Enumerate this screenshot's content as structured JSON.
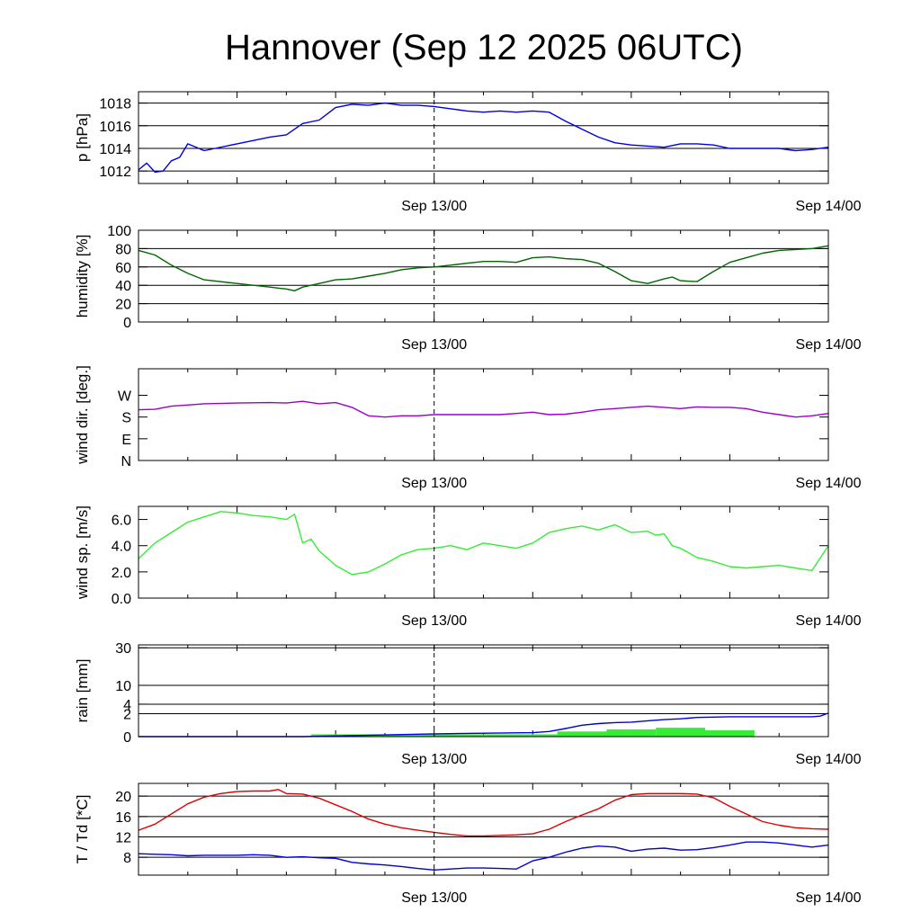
{
  "title": "Hannover (Sep 12 2025 06UTC)",
  "time_axis": {
    "start_hours": 0,
    "end_hours": 42,
    "labels": [
      {
        "h": 18,
        "text": "Sep 13/00"
      },
      {
        "h": 42,
        "text": "Sep 14/00"
      }
    ]
  },
  "chart_data": [
    {
      "type": "line",
      "ylabel": "p [hPa]",
      "ylim": [
        1010.9,
        1019.0
      ],
      "grid_y": [
        1012,
        1014,
        1016,
        1018
      ],
      "yticks": [
        {
          "v": 1012,
          "label": "1012"
        },
        {
          "v": 1014,
          "label": "1014"
        },
        {
          "v": 1016,
          "label": "1016"
        },
        {
          "v": 1018,
          "label": "1018"
        }
      ],
      "series": [
        {
          "color": "#0000dd",
          "x": [
            0,
            0.5,
            1,
            1.5,
            2,
            2.5,
            3,
            4,
            6,
            8,
            9,
            10,
            11,
            12,
            13,
            14,
            15,
            16,
            17,
            18,
            19,
            20,
            21,
            22,
            23,
            24,
            25,
            26,
            27,
            28,
            29,
            30,
            31,
            32,
            33,
            34,
            35,
            36,
            37,
            38,
            39,
            40,
            41,
            42
          ],
          "y": [
            1012.1,
            1012.7,
            1011.9,
            1012.0,
            1012.9,
            1013.2,
            1014.4,
            1013.8,
            1014.4,
            1015.0,
            1015.2,
            1016.2,
            1016.5,
            1017.6,
            1017.9,
            1017.8,
            1018.0,
            1017.8,
            1017.8,
            1017.7,
            1017.5,
            1017.3,
            1017.2,
            1017.3,
            1017.2,
            1017.3,
            1017.2,
            1016.4,
            1015.7,
            1015.0,
            1014.5,
            1014.3,
            1014.2,
            1014.1,
            1014.4,
            1014.4,
            1014.3,
            1014.0,
            1014.0,
            1014.0,
            1014.0,
            1013.8,
            1013.9,
            1014.1
          ]
        }
      ]
    },
    {
      "type": "line",
      "ylabel": "humidity [%]",
      "ylim": [
        0,
        100
      ],
      "grid_y": [
        20,
        40,
        60,
        80
      ],
      "yticks": [
        {
          "v": 0,
          "label": "0"
        },
        {
          "v": 20,
          "label": "20"
        },
        {
          "v": 40,
          "label": "40"
        },
        {
          "v": 60,
          "label": "60"
        },
        {
          "v": 80,
          "label": "80"
        },
        {
          "v": 100,
          "label": "100"
        }
      ],
      "series": [
        {
          "color": "#006600",
          "x": [
            0,
            1,
            2,
            3,
            4,
            6,
            8,
            8.5,
            9,
            9.5,
            10,
            11,
            12,
            13,
            14,
            15,
            16,
            17,
            18,
            19,
            20,
            21,
            22,
            23,
            24,
            25,
            26,
            27,
            28,
            29,
            30,
            31,
            32,
            32.5,
            33,
            34,
            35,
            36,
            37,
            38,
            39,
            40,
            41,
            42
          ],
          "y": [
            78,
            73,
            62,
            53,
            46,
            42,
            38,
            37,
            36,
            34,
            38,
            42,
            46,
            47,
            50,
            53,
            57,
            59,
            60,
            62,
            64,
            66,
            66,
            65,
            70,
            71,
            69,
            68,
            64,
            55,
            45,
            42,
            47,
            49,
            45,
            44,
            55,
            65,
            70,
            75,
            78,
            79,
            80,
            83
          ]
        }
      ]
    },
    {
      "type": "line",
      "ylabel": "wind dir. [deg.]",
      "ylim": [
        0,
        380
      ],
      "grid_y": [],
      "yticks": [
        {
          "v": 0,
          "label": "N"
        },
        {
          "v": 90,
          "label": "E"
        },
        {
          "v": 180,
          "label": "S"
        },
        {
          "v": 270,
          "label": "W"
        }
      ],
      "series": [
        {
          "color": "#9900cc",
          "x": [
            0,
            1,
            2,
            3,
            4,
            6,
            8,
            9,
            10,
            11,
            12,
            13,
            14,
            15,
            16,
            17,
            18,
            19,
            20,
            21,
            22,
            23,
            24,
            25,
            26,
            27,
            28,
            29,
            30,
            31,
            32,
            33,
            34,
            35,
            36,
            37,
            38,
            39,
            40,
            41,
            42
          ],
          "y": [
            210,
            212,
            225,
            230,
            235,
            238,
            240,
            238,
            245,
            235,
            240,
            220,
            185,
            180,
            185,
            185,
            190,
            190,
            190,
            190,
            190,
            195,
            200,
            190,
            192,
            200,
            210,
            215,
            220,
            225,
            220,
            215,
            222,
            220,
            220,
            215,
            200,
            190,
            180,
            185,
            195
          ]
        }
      ]
    },
    {
      "type": "line",
      "ylabel": "wind sp. [m/s]",
      "ylim": [
        0,
        7.0
      ],
      "grid_y": [],
      "yticks": [
        {
          "v": 0,
          "label": "0.0"
        },
        {
          "v": 2,
          "label": "2.0"
        },
        {
          "v": 4,
          "label": "4.0"
        },
        {
          "v": 6,
          "label": "6.0"
        }
      ],
      "series": [
        {
          "color": "#33ee33",
          "x": [
            0,
            1,
            2,
            3,
            4,
            5,
            6,
            7,
            8,
            9,
            9.5,
            10,
            10.5,
            11,
            12,
            13,
            14,
            15,
            16,
            17,
            18,
            19,
            20,
            21,
            22,
            23,
            24,
            25,
            26,
            27,
            28,
            29,
            30,
            31,
            31.5,
            32,
            32.5,
            33,
            34,
            35,
            36,
            37,
            38,
            39,
            40,
            41,
            42
          ],
          "y": [
            3.0,
            4.2,
            5.0,
            5.8,
            6.2,
            6.6,
            6.5,
            6.3,
            6.2,
            6.0,
            6.4,
            4.2,
            4.5,
            3.6,
            2.5,
            1.8,
            2.0,
            2.6,
            3.3,
            3.7,
            3.8,
            4.0,
            3.7,
            4.2,
            4.0,
            3.8,
            4.2,
            5.0,
            5.3,
            5.5,
            5.2,
            5.6,
            5.0,
            5.1,
            4.8,
            4.9,
            4.0,
            3.8,
            3.1,
            2.8,
            2.4,
            2.3,
            2.4,
            2.5,
            2.3,
            2.1,
            4.0
          ]
        }
      ]
    },
    {
      "type": "bar+line",
      "ylabel": "rain [mm]",
      "scale": "sqrt",
      "ylim": [
        0,
        32
      ],
      "grid_y": [
        2,
        4,
        10,
        30
      ],
      "yticks": [
        {
          "v": 0,
          "label": "0"
        },
        {
          "v": 2,
          "label": "2"
        },
        {
          "v": 4,
          "label": "4"
        },
        {
          "v": 10,
          "label": "10"
        },
        {
          "v": 30,
          "label": "30"
        }
      ],
      "bars": {
        "color": "#33ee33",
        "items": [
          {
            "x0": 10.5,
            "x1": 25.5,
            "v": 0.02
          },
          {
            "x0": 25.5,
            "x1": 28.5,
            "v": 0.1
          },
          {
            "x0": 28.5,
            "x1": 31.5,
            "v": 0.2
          },
          {
            "x0": 31.5,
            "x1": 34.5,
            "v": 0.3
          },
          {
            "x0": 34.5,
            "x1": 37.5,
            "v": 0.15
          }
        ]
      },
      "series": [
        {
          "color": "#0000dd",
          "x": [
            0,
            10,
            18,
            24,
            25,
            26,
            27,
            28,
            29,
            30,
            31,
            32,
            33,
            34,
            35,
            36,
            38,
            40,
            41,
            41.5,
            42
          ],
          "y": [
            0,
            0,
            0.03,
            0.06,
            0.1,
            0.25,
            0.5,
            0.65,
            0.75,
            0.8,
            0.95,
            1.1,
            1.2,
            1.4,
            1.45,
            1.5,
            1.5,
            1.5,
            1.5,
            1.6,
            2.1
          ]
        }
      ]
    },
    {
      "type": "line",
      "ylabel": "T / Td [*C]",
      "ylim": [
        4.5,
        22.5
      ],
      "grid_y": [
        8,
        12,
        16,
        20
      ],
      "yticks": [
        {
          "v": 8,
          "label": "8"
        },
        {
          "v": 12,
          "label": "12"
        },
        {
          "v": 16,
          "label": "16"
        },
        {
          "v": 20,
          "label": "20"
        }
      ],
      "series": [
        {
          "color": "#dd0000",
          "x": [
            0,
            1,
            2,
            3,
            4,
            5,
            6,
            7,
            8,
            8.5,
            9,
            10,
            11,
            12,
            13,
            14,
            15,
            16,
            17,
            18,
            19,
            20,
            21,
            22,
            23,
            24,
            25,
            26,
            27,
            28,
            29,
            30,
            31,
            32,
            33,
            34,
            35,
            36,
            37,
            38,
            39,
            40,
            41,
            42
          ],
          "y": [
            13.3,
            14.5,
            16.5,
            18.5,
            19.8,
            20.5,
            20.9,
            21.0,
            21.0,
            21.3,
            20.5,
            20.4,
            19.6,
            18.3,
            17.0,
            15.5,
            14.5,
            13.8,
            13.3,
            12.9,
            12.5,
            12.2,
            12.2,
            12.3,
            12.4,
            12.6,
            13.5,
            15.0,
            16.3,
            17.5,
            19.2,
            20.3,
            20.5,
            20.5,
            20.5,
            20.4,
            19.7,
            18.0,
            16.5,
            15.0,
            14.3,
            13.8,
            13.6,
            13.5
          ]
        },
        {
          "color": "#0000dd",
          "x": [
            0,
            1,
            2,
            3,
            4,
            5,
            6,
            7,
            8,
            9,
            10,
            11,
            12,
            13,
            14,
            15,
            16,
            17,
            18,
            19,
            20,
            21,
            22,
            23,
            24,
            25,
            26,
            27,
            28,
            29,
            30,
            31,
            32,
            33,
            34,
            35,
            36,
            37,
            38,
            39,
            40,
            41,
            42
          ],
          "y": [
            8.7,
            8.6,
            8.5,
            8.3,
            8.4,
            8.4,
            8.4,
            8.5,
            8.4,
            8.0,
            8.1,
            7.9,
            7.8,
            7.0,
            6.7,
            6.5,
            6.2,
            5.8,
            5.5,
            5.7,
            5.9,
            5.9,
            5.8,
            5.7,
            7.3,
            8.0,
            9.0,
            9.8,
            10.2,
            10.0,
            9.2,
            9.6,
            9.8,
            9.4,
            9.5,
            9.9,
            10.4,
            11.0,
            11.0,
            10.8,
            10.4,
            10.0,
            10.4
          ]
        }
      ]
    }
  ]
}
